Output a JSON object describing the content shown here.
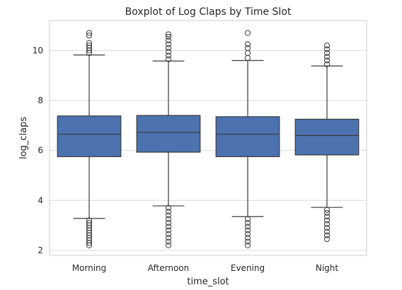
{
  "chart_data": {
    "type": "boxplot",
    "title": "Boxplot of Log Claps by Time Slot",
    "xlabel": "time_slot",
    "ylabel": "log_claps",
    "ylim": [
      1.8,
      11.2
    ],
    "yticks": [
      2,
      4,
      6,
      8,
      10
    ],
    "grid": true,
    "colors": {
      "box_fill": "#4c72b0",
      "box_edge": "#3b3b3b",
      "grid": "#d9d9d9",
      "frame": "#cccccc",
      "outlier": "#3b3b3b"
    },
    "categories": [
      "Morning",
      "Afternoon",
      "Evening",
      "Night"
    ],
    "boxes": [
      {
        "category": "Morning",
        "whisker_low": 3.28,
        "q1": 5.75,
        "median": 6.65,
        "q3": 7.38,
        "whisker_high": 9.82,
        "outliers": [
          2.2,
          2.3,
          2.4,
          2.5,
          2.6,
          2.7,
          2.8,
          2.9,
          3.0,
          3.1,
          3.2,
          9.9,
          10.0,
          10.1,
          10.2,
          10.3,
          10.6,
          10.7
        ]
      },
      {
        "category": "Afternoon",
        "whisker_low": 3.78,
        "q1": 5.93,
        "median": 6.72,
        "q3": 7.4,
        "whisker_high": 9.58,
        "outliers": [
          2.2,
          2.35,
          2.5,
          2.65,
          2.8,
          2.95,
          3.1,
          3.25,
          3.4,
          3.55,
          3.7,
          9.65,
          9.8,
          9.95,
          10.1,
          10.25,
          10.4,
          10.55,
          10.65
        ]
      },
      {
        "category": "Evening",
        "whisker_low": 3.35,
        "q1": 5.75,
        "median": 6.65,
        "q3": 7.35,
        "whisker_high": 9.6,
        "outliers": [
          2.2,
          2.35,
          2.5,
          2.65,
          2.8,
          2.95,
          3.1,
          3.25,
          9.7,
          9.9,
          10.1,
          10.25,
          10.7
        ]
      },
      {
        "category": "Night",
        "whisker_low": 3.72,
        "q1": 5.82,
        "median": 6.6,
        "q3": 7.25,
        "whisker_high": 9.38,
        "outliers": [
          2.45,
          2.6,
          2.75,
          2.9,
          3.05,
          3.2,
          3.35,
          3.5,
          3.62,
          9.45,
          9.6,
          9.75,
          9.9,
          10.05,
          10.2
        ]
      }
    ]
  }
}
